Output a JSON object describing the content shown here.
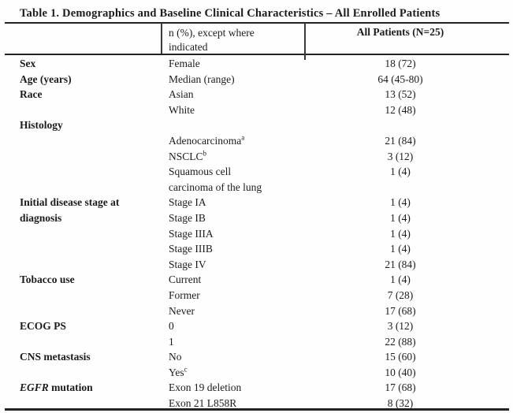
{
  "title": "Table 1. Demographics and Baseline Clinical Characteristics – All Enrolled Patients",
  "header": {
    "col2": "n (%), except where\nindicated",
    "col3": "All Patients (N=25)"
  },
  "rows": [
    {
      "c1": "Sex",
      "c2": "Female",
      "c3": "18 (72)"
    },
    {
      "c1": "Age (years)",
      "c2": "Median (range)",
      "c3": "64 (45-80)"
    },
    {
      "c1": "Race",
      "c2": "Asian",
      "c3": "13 (52)"
    },
    {
      "c1": "",
      "c2": "White",
      "c3": "12 (48)"
    },
    {
      "c1": "Histology",
      "c2": "",
      "c3": ""
    },
    {
      "c1": "",
      "c2": "Adenocarcinoma",
      "sup": "a",
      "c3": "21 (84)"
    },
    {
      "c1": "",
      "c2": "NSCLC",
      "sup": "b",
      "c3": "3 (12)"
    },
    {
      "c1": "",
      "c2": "Squamous cell",
      "c3": "1 (4)"
    },
    {
      "c1": "",
      "c2": "carcinoma of the lung",
      "c3": ""
    },
    {
      "c1": "Initial disease stage at",
      "c2": "Stage IA",
      "c3": "1 (4)"
    },
    {
      "c1": "diagnosis",
      "c2": "Stage IB",
      "c3": "1 (4)"
    },
    {
      "c1": "",
      "c2": "Stage IIIA",
      "c3": "1 (4)"
    },
    {
      "c1": "",
      "c2": "Stage IIIB",
      "c3": "1 (4)"
    },
    {
      "c1": "",
      "c2": "Stage IV",
      "c3": "21 (84)"
    },
    {
      "c1": "Tobacco use",
      "c2": "Current",
      "c3": "1 (4)"
    },
    {
      "c1": "",
      "c2": "Former",
      "c3": "7 (28)"
    },
    {
      "c1": "",
      "c2": "Never",
      "c3": "17 (68)"
    },
    {
      "c1": "ECOG PS",
      "c2": "0",
      "c3": "3 (12)"
    },
    {
      "c1": "",
      "c2": "1",
      "c3": "22 (88)"
    },
    {
      "c1": "CNS metastasis",
      "c2": "No",
      "c3": "15 (60)"
    },
    {
      "c1": "",
      "c2": "Yes",
      "sup": "c",
      "c3": "10 (40)"
    },
    {
      "c1_em": "EGFR",
      "c1_rest": "mutation",
      "c2": "Exon 19 deletion",
      "c3": "17 (68)"
    },
    {
      "c1": "",
      "c2": "Exon 21 L858R",
      "c3": "8 (32)"
    }
  ],
  "colors": {
    "text": "#1c1c1c",
    "rule": "#232323",
    "background": "#fefefe"
  }
}
